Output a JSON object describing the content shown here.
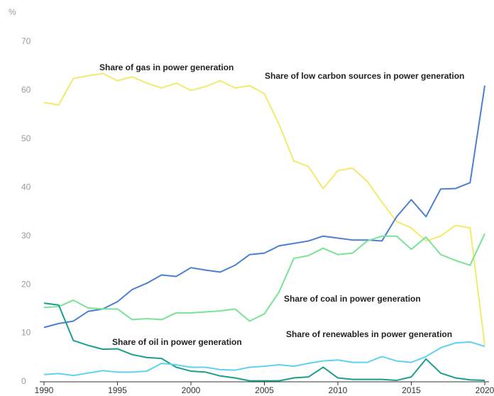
{
  "chart_data": {
    "type": "line",
    "ylabel": "%",
    "x": [
      1990,
      1991,
      1992,
      1993,
      1994,
      1995,
      1996,
      1997,
      1998,
      1999,
      2000,
      2001,
      2002,
      2003,
      2004,
      2005,
      2006,
      2007,
      2008,
      2009,
      2010,
      2011,
      2012,
      2013,
      2014,
      2015,
      2016,
      2017,
      2018,
      2019,
      2020
    ],
    "xlim": [
      1990,
      2020
    ],
    "xticks": [
      1990,
      1995,
      2000,
      2005,
      2010,
      2015,
      2020
    ],
    "ylim": [
      0,
      70
    ],
    "yticks": [
      0,
      10,
      20,
      30,
      40,
      50,
      60,
      70
    ],
    "grid": false,
    "series": [
      {
        "name": "Share of gas in power generation",
        "color": "#f3ea6c",
        "values": [
          57.5,
          57,
          62.5,
          63,
          63.5,
          62,
          62.8,
          61.5,
          60.5,
          61.5,
          60,
          60.8,
          62,
          60.5,
          61,
          59.3,
          53,
          45.5,
          44.3,
          39.8,
          43.5,
          44,
          41.3,
          37,
          33,
          31.7,
          29,
          30,
          32.2,
          31.7,
          7.5
        ]
      },
      {
        "name": "Share of low carbon sources in power generation",
        "color": "#4a7fd4",
        "values": [
          11.2,
          12,
          12.5,
          14.5,
          15,
          16.5,
          19,
          20.3,
          22,
          21.7,
          23.5,
          23,
          22.6,
          24,
          26.2,
          26.5,
          28,
          28.5,
          29,
          30,
          29.6,
          29.2,
          29.2,
          29,
          34,
          37.5,
          34,
          39.7,
          39.8,
          41,
          61
        ]
      },
      {
        "name": "Share of coal in power generation",
        "color": "#78e397",
        "values": [
          15.3,
          15.5,
          16.8,
          15.2,
          15,
          15,
          12.8,
          13,
          12.8,
          14.2,
          14.2,
          14.4,
          14.6,
          15,
          12.5,
          14,
          18.5,
          25.4,
          26,
          27.5,
          26.2,
          26.5,
          29,
          30,
          30,
          27.3,
          29.8,
          26.2,
          25,
          24,
          30.5
        ]
      },
      {
        "name": "Share of oil in power generation",
        "color": "#1a9e8e",
        "values": [
          16.2,
          15.8,
          8.5,
          7.5,
          6.7,
          6.8,
          5.6,
          5,
          4.8,
          3,
          2.2,
          2,
          1.2,
          0.8,
          0.2,
          0.2,
          0.2,
          0.8,
          1,
          3,
          0.8,
          0.5,
          0.5,
          0.5,
          0.3,
          1,
          4.7,
          1.8,
          0.8,
          0.4,
          0.3
        ]
      },
      {
        "name": "Share of renewables in power generation",
        "color": "#5fd2f2",
        "values": [
          1.5,
          1.7,
          1.3,
          1.8,
          2.3,
          2,
          2,
          2.2,
          3.8,
          3.5,
          3,
          3,
          2.5,
          2.4,
          3,
          3.2,
          3.5,
          3.2,
          3.8,
          4.3,
          4.5,
          4,
          4,
          5.2,
          4.3,
          4,
          5.2,
          7,
          8,
          8.2,
          7.3
        ]
      }
    ]
  }
}
